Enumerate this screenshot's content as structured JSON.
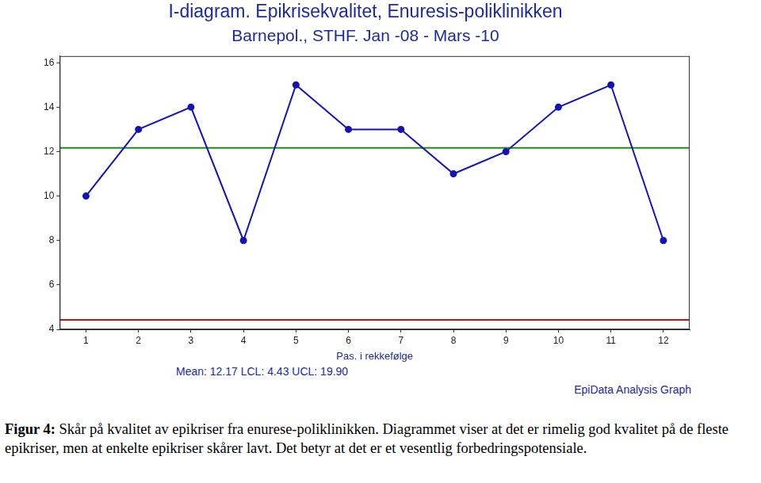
{
  "chart_data": {
    "type": "line",
    "title": "I-diagram. Epikrisekvalitet, Enuresis-poliklinikken",
    "subtitle": "Barnepol., STHF. Jan -08 - Mars -10",
    "xlabel": "Pas. i rekkefølge",
    "x": [
      1,
      2,
      3,
      4,
      5,
      6,
      7,
      8,
      9,
      10,
      11,
      12
    ],
    "values": [
      10,
      13,
      14,
      8,
      15,
      13,
      13,
      11,
      12,
      14,
      15,
      8
    ],
    "color": "#1414b4",
    "marker": "circle",
    "xlim": [
      0.5,
      12.5
    ],
    "xticks": [
      1,
      2,
      3,
      4,
      5,
      6,
      7,
      8,
      9,
      10,
      11,
      12
    ],
    "ylim": [
      4,
      16.3
    ],
    "yticks": [
      4,
      6,
      8,
      10,
      12,
      14,
      16
    ],
    "grid": false,
    "legend": false,
    "reference_lines": [
      {
        "label": "Mean",
        "value": 12.17,
        "color": "#1f8a1f"
      },
      {
        "label": "LCL",
        "value": 4.43,
        "color": "#d01010"
      },
      {
        "label": "UCL",
        "value": 19.9,
        "color": "#d01010"
      }
    ],
    "footnote": "Mean: 12.17 LCL: 4.43 UCL: 19.90",
    "credit": "EpiData Analysis Graph"
  },
  "caption": {
    "label": "Figur 4:",
    "text": "Skår på kvalitet av epikriser fra enurese-poliklinikken. Diagrammet viser at det er rimelig god kvalitet på de fleste epikriser, men at enkelte epikriser skårer lavt. Det betyr at det er et vesentlig forbedringspotensiale."
  }
}
